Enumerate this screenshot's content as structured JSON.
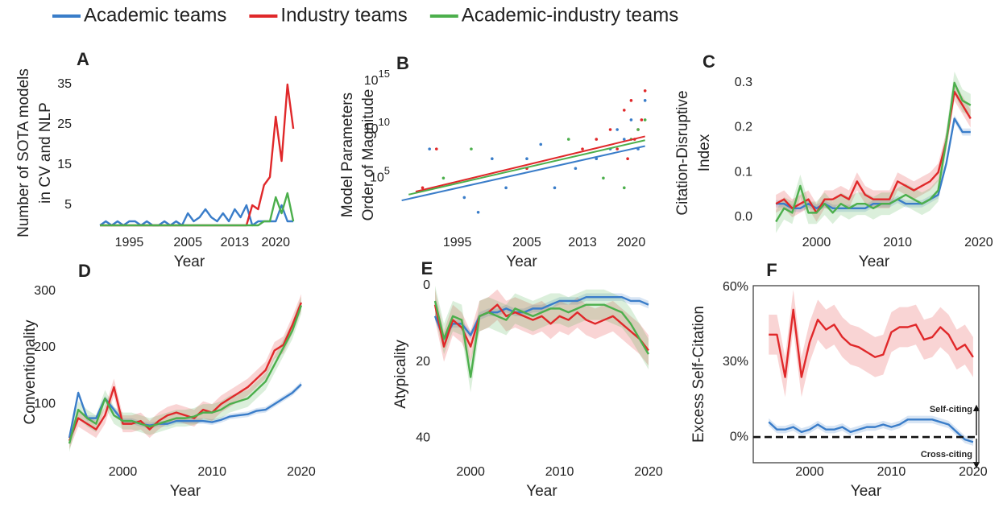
{
  "chart_data": [
    {
      "type": "line",
      "panel_label": "A",
      "xlabel": "Year",
      "ylabel": [
        "Number of SOTA models",
        "in CV and NLP"
      ],
      "x": [
        1990,
        1991,
        1992,
        1993,
        1994,
        1995,
        1996,
        1997,
        1998,
        1999,
        2000,
        2001,
        2002,
        2003,
        2004,
        2005,
        2006,
        2007,
        2008,
        2009,
        2010,
        2011,
        2012,
        2013,
        2014,
        2015,
        2016,
        2017,
        2018,
        2019,
        2020,
        2021,
        2022,
        2023
      ],
      "series": [
        {
          "name": "Academic teams",
          "color": "#3a7dc9",
          "values": [
            0,
            1,
            0,
            1,
            0,
            1,
            1,
            0,
            1,
            0,
            0,
            1,
            0,
            1,
            0,
            3,
            1,
            2,
            4,
            2,
            1,
            3,
            1,
            4,
            2,
            5,
            0,
            1,
            1,
            1,
            1,
            5,
            1,
            1
          ]
        },
        {
          "name": "Industry teams",
          "color": "#e0282a",
          "values": [
            0,
            0,
            0,
            0,
            0,
            0,
            0,
            0,
            0,
            0,
            0,
            0,
            0,
            0,
            0,
            0,
            0,
            0,
            0,
            0,
            0,
            0,
            0,
            0,
            0,
            0,
            5,
            4,
            10,
            12,
            27,
            16,
            35,
            24
          ]
        },
        {
          "name": "Academic-industry teams",
          "color": "#4caf4c",
          "values": [
            0,
            0,
            0,
            0,
            0,
            0,
            0,
            0,
            0,
            0,
            0,
            0,
            0,
            0,
            0,
            0,
            0,
            0,
            0,
            0,
            0,
            0,
            0,
            0,
            0,
            0,
            0,
            0,
            1,
            1,
            7,
            3,
            8,
            1
          ]
        }
      ],
      "xlim": [
        1986,
        2024.5
      ],
      "xticks": [
        1995,
        2005,
        2013,
        2020
      ],
      "ylim": [
        -2,
        38
      ],
      "yticks": [
        5,
        15,
        25,
        35
      ]
    },
    {
      "type": "scatter",
      "panel_label": "B",
      "xlabel": "Year",
      "ylabel": [
        "Model Parameters",
        "Order of Magnitude"
      ],
      "log_y": true,
      "series": [
        {
          "name": "Academic teams",
          "color": "#3a7dc9",
          "x": [
            1991,
            1996,
            1998,
            2000,
            2002,
            2005,
            2007,
            2009,
            2012,
            2015,
            2017,
            2018,
            2019,
            2020,
            2021,
            2022
          ],
          "values": [
            100000000.0,
            1000,
            30,
            10000000.0,
            10000,
            10000000.0,
            300000000.0,
            10000,
            1000000.0,
            10000000.0,
            100000000.0,
            10000000000.0,
            1000000000.0,
            100000000000.0,
            100000000.0,
            10000000000000.0
          ],
          "trend_x": [
            1987,
            2022
          ],
          "trend_values": [
            500,
            200000000.0
          ]
        },
        {
          "name": "Industry teams",
          "color": "#e0282a",
          "x": [
            1990,
            1992,
            2005,
            2013,
            2015,
            2017,
            2018,
            2019,
            2019.5,
            2020,
            2020.5,
            2021,
            2021.5,
            2022
          ],
          "values": [
            10000.0,
            100000000.0,
            1000000.0,
            100000000.0,
            1000000000.0,
            10000000000.0,
            100000000.0,
            1000000000000.0,
            10000000.0,
            10000000000000.0,
            1000000000.0,
            10000000000.0,
            100000000000.0,
            100000000000000.0
          ],
          "trend_x": [
            1989,
            2022
          ],
          "trend_values": [
            4000,
            2000000000.0
          ]
        },
        {
          "name": "Academic-industry teams",
          "color": "#4caf4c",
          "x": [
            1993,
            1997,
            2011,
            2016,
            2019,
            2020,
            2021,
            2022
          ],
          "values": [
            100000.0,
            100000000.0,
            1000000000.0,
            100000.0,
            10000.0,
            1000000000.0,
            10000000000.0,
            100000000000.0
          ],
          "trend_x": [
            1988,
            2022
          ],
          "trend_values": [
            2000,
            800000000.0
          ]
        }
      ],
      "xlim": [
        1986,
        2022.5
      ],
      "xticks": [
        1995,
        2005,
        2013,
        2020
      ],
      "ylim": [
        0.2,
        3000000000000000.0
      ],
      "yticks": [
        {
          "value": 100000.0,
          "label": "10",
          "exponent": "5"
        },
        {
          "value": 10000000000.0,
          "label": "10",
          "exponent": "10"
        },
        {
          "value": 1000000000000000.0,
          "label": "10",
          "exponent": "15"
        }
      ]
    },
    {
      "type": "line",
      "panel_label": "C",
      "xlabel": "Year",
      "ylabel": [
        "Citation-Disruptive",
        "Index"
      ],
      "x": [
        1995,
        1996,
        1997,
        1998,
        1999,
        2000,
        2001,
        2002,
        2003,
        2004,
        2005,
        2006,
        2007,
        2008,
        2009,
        2010,
        2011,
        2012,
        2013,
        2014,
        2015,
        2016,
        2017,
        2018,
        2019
      ],
      "series": [
        {
          "name": "Academic teams",
          "color": "#3a7dc9",
          "band": 0.008,
          "values": [
            0.03,
            0.03,
            0.02,
            0.02,
            0.03,
            0.02,
            0.03,
            0.02,
            0.02,
            0.02,
            0.02,
            0.02,
            0.03,
            0.03,
            0.03,
            0.04,
            0.03,
            0.03,
            0.03,
            0.04,
            0.05,
            0.12,
            0.22,
            0.19,
            0.19
          ]
        },
        {
          "name": "Industry teams",
          "color": "#e0282a",
          "band": 0.02,
          "values": [
            0.03,
            0.04,
            0.02,
            0.03,
            0.04,
            0.01,
            0.04,
            0.04,
            0.05,
            0.04,
            0.08,
            0.05,
            0.04,
            0.04,
            0.04,
            0.08,
            0.07,
            0.06,
            0.07,
            0.08,
            0.1,
            0.17,
            0.28,
            0.25,
            0.22
          ]
        },
        {
          "name": "Academic-industry teams",
          "color": "#4caf4c",
          "band": 0.025,
          "values": [
            -0.01,
            0.02,
            0.01,
            0.07,
            0.01,
            0.01,
            0.03,
            0.01,
            0.03,
            0.02,
            0.03,
            0.03,
            0.02,
            0.03,
            0.03,
            0.04,
            0.05,
            0.04,
            0.03,
            0.04,
            0.06,
            0.17,
            0.3,
            0.26,
            0.25
          ]
        }
      ],
      "xlim": [
        1992.7,
        2021.5
      ],
      "xticks": [
        2000,
        2010,
        2020
      ],
      "ylim": [
        -0.036,
        0.323
      ],
      "yticks": [
        {
          "value": 0,
          "label": "0.0"
        },
        0.1,
        0.2,
        0.3
      ]
    },
    {
      "type": "line",
      "panel_label": "D",
      "xlabel": "Year",
      "ylabel": [
        "Conventionality"
      ],
      "x": [
        1994,
        1995,
        1996,
        1997,
        1998,
        1999,
        2000,
        2001,
        2002,
        2003,
        2004,
        2005,
        2006,
        2007,
        2008,
        2009,
        2010,
        2011,
        2012,
        2013,
        2014,
        2015,
        2016,
        2017,
        2018,
        2019,
        2020
      ],
      "series": [
        {
          "name": "Academic teams",
          "color": "#3a7dc9",
          "band": 5,
          "values": [
            40,
            120,
            75,
            75,
            110,
            90,
            70,
            70,
            65,
            62,
            65,
            65,
            70,
            70,
            70,
            70,
            68,
            72,
            78,
            80,
            82,
            88,
            90,
            100,
            110,
            120,
            135
          ]
        },
        {
          "name": "Industry teams",
          "color": "#e0282a",
          "band": 15,
          "values": [
            35,
            75,
            65,
            55,
            80,
            130,
            65,
            65,
            70,
            55,
            70,
            80,
            85,
            80,
            75,
            90,
            85,
            100,
            110,
            120,
            130,
            145,
            160,
            195,
            205,
            240,
            280
          ]
        },
        {
          "name": "Academic-industry teams",
          "color": "#4caf4c",
          "band": 15,
          "values": [
            30,
            90,
            75,
            65,
            110,
            80,
            70,
            70,
            65,
            60,
            65,
            70,
            75,
            75,
            78,
            85,
            85,
            90,
            100,
            105,
            110,
            125,
            140,
            170,
            200,
            230,
            275
          ]
        }
      ],
      "xlim": [
        1993,
        2021
      ],
      "xticks": [
        2000,
        2010,
        2020
      ],
      "ylim": [
        -4,
        317
      ],
      "yticks": [
        100,
        200,
        300
      ]
    },
    {
      "type": "line",
      "panel_label": "E",
      "xlabel": "Year",
      "ylabel": [
        "Atypicality"
      ],
      "invert_y": true,
      "x": [
        1996,
        1997,
        1998,
        1999,
        2000,
        2001,
        2002,
        2003,
        2004,
        2005,
        2006,
        2007,
        2008,
        2009,
        2010,
        2011,
        2012,
        2013,
        2014,
        2015,
        2016,
        2017,
        2018,
        2019,
        2020
      ],
      "series": [
        {
          "name": "Academic teams",
          "color": "#3a7dc9",
          "band": 1,
          "values": [
            8,
            14,
            10,
            10,
            13,
            8,
            7,
            7,
            6,
            7,
            7,
            6,
            6,
            5,
            4,
            4,
            4,
            3,
            3,
            3,
            3,
            3,
            4,
            4,
            5
          ]
        },
        {
          "name": "Industry teams",
          "color": "#e0282a",
          "band": 4,
          "values": [
            5,
            16,
            9,
            11,
            16,
            8,
            7,
            5,
            8,
            7,
            8,
            9,
            8,
            10,
            8,
            9,
            7,
            9,
            10,
            9,
            8,
            10,
            12,
            14,
            17
          ]
        },
        {
          "name": "Academic-industry teams",
          "color": "#4caf4c",
          "band": 4,
          "values": [
            4,
            14,
            8,
            9,
            24,
            8,
            7,
            8,
            9,
            6,
            7,
            8,
            7,
            6,
            6,
            7,
            6,
            5,
            5,
            5,
            6,
            7,
            10,
            14,
            18
          ]
        }
      ],
      "xlim": [
        1996,
        2020
      ],
      "xticks": [
        2000,
        2010,
        2020
      ],
      "ylim": [
        0,
        46.5
      ],
      "yticks": [
        0,
        20,
        40
      ]
    },
    {
      "type": "line",
      "panel_label": "F",
      "xlabel": "Year",
      "ylabel": [
        "Excess Self-Citation"
      ],
      "frame": true,
      "x": [
        1995,
        1996,
        1997,
        1998,
        1999,
        2000,
        2001,
        2002,
        2003,
        2004,
        2005,
        2006,
        2007,
        2008,
        2009,
        2010,
        2011,
        2012,
        2013,
        2014,
        2015,
        2016,
        2017,
        2018,
        2019,
        2020
      ],
      "series": [
        {
          "name": "Academic teams",
          "color": "#3a7dc9",
          "band": 1.5,
          "values": [
            6,
            3,
            3,
            4,
            2,
            3,
            5,
            3,
            3,
            4,
            2,
            3,
            4,
            4,
            5,
            4,
            5,
            7,
            7,
            7,
            7,
            6,
            5,
            2,
            -1,
            -2
          ]
        },
        {
          "name": "Industry teams",
          "color": "#e0282a",
          "band": 8,
          "values": [
            41,
            41,
            24,
            51,
            24,
            38,
            47,
            43,
            45,
            40,
            37,
            36,
            34,
            32,
            33,
            42,
            44,
            44,
            45,
            39,
            40,
            44,
            41,
            35,
            37,
            32
          ]
        }
      ],
      "reference_line": 0,
      "annotations": [
        "Self-citing",
        "Cross-citing"
      ],
      "xlim": [
        1993.1,
        2020.7
      ],
      "xticks": [
        2000,
        2010,
        2020
      ],
      "ylim": [
        -10.3,
        60.6
      ],
      "yticks": [
        {
          "value": 0,
          "label": "0%"
        },
        {
          "value": 30,
          "label": "30%"
        },
        {
          "value": 60,
          "label": "60%"
        }
      ]
    }
  ]
}
